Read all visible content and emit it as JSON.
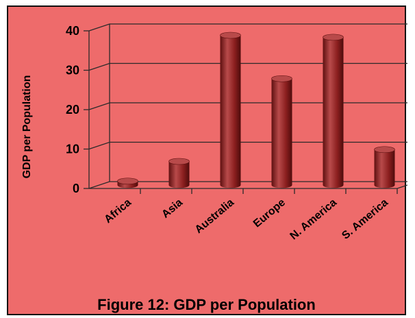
{
  "caption": "Figure 12:  GDP per Population",
  "colors": {
    "background": "#ee6b6b",
    "bar": "#8b1f1f",
    "bar_light": "#b84a4a",
    "bar_dark": "#5e1010",
    "gridline": "#2a2a2a"
  },
  "chart_data": {
    "type": "bar",
    "ylabel": "GDP per Population",
    "xlabel": "",
    "categories": [
      "Africa",
      "Asia",
      "Australia",
      "Europe",
      "N. America",
      "S. America"
    ],
    "values": [
      1,
      6,
      38,
      27,
      37.5,
      9
    ],
    "ylim": [
      0,
      40
    ],
    "yticks": [
      "0",
      "10",
      "20",
      "30",
      "40"
    ],
    "grid": true,
    "style": "3d-cylinder"
  }
}
